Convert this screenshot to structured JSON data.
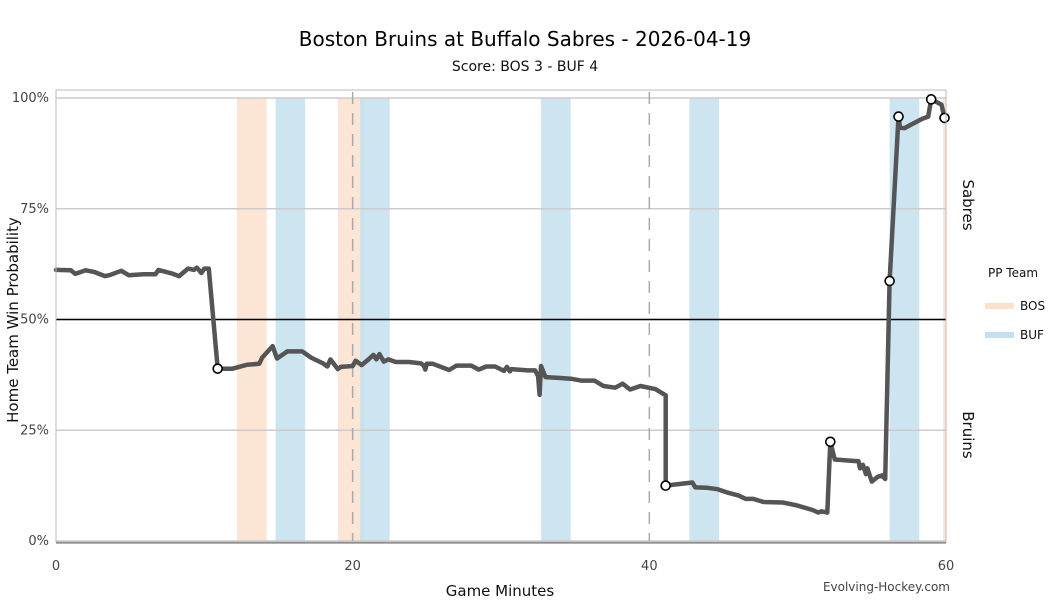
{
  "chart_data": {
    "type": "line",
    "title": "Boston Bruins at Buffalo Sabres - 2026-04-19",
    "subtitle": "Score: BOS 3 - BUF 4",
    "xlabel": "Game Minutes",
    "ylabel": "Home Team Win Probability",
    "xlim": [
      0,
      60
    ],
    "ylim": [
      0,
      1
    ],
    "x_ticks": [
      0,
      20,
      40,
      60
    ],
    "y_ticks": [
      {
        "value": 0,
        "label": "0%"
      },
      {
        "value": 0.25,
        "label": "25%"
      },
      {
        "value": 0.5,
        "label": "50%"
      },
      {
        "value": 0.75,
        "label": "75%"
      },
      {
        "value": 1,
        "label": "100%"
      }
    ],
    "period_breaks": [
      20,
      40
    ],
    "reference_line": 0.5,
    "side_labels": {
      "top": "Sabres",
      "bottom": "Bruins"
    },
    "legend": {
      "title": "PP Team",
      "position": "right",
      "entries": [
        {
          "name": "BOS",
          "color": "#fbe0cc"
        },
        {
          "name": "BUF",
          "color": "#c4e0ef"
        }
      ]
    },
    "power_plays": [
      {
        "team": "BOS",
        "start": 12.2,
        "end": 14.2
      },
      {
        "team": "BUF",
        "start": 14.8,
        "end": 16.8
      },
      {
        "team": "BOS",
        "start": 19.0,
        "end": 20.8
      },
      {
        "team": "BUF",
        "start": 20.5,
        "end": 22.5
      },
      {
        "team": "BUF",
        "start": 32.7,
        "end": 34.7
      },
      {
        "team": "BUF",
        "start": 42.7,
        "end": 44.7
      },
      {
        "team": "BUF",
        "start": 56.2,
        "end": 58.2
      },
      {
        "team": "BOS",
        "start": 59.8,
        "end": 60.0
      }
    ],
    "series": [
      {
        "color": "#555555",
        "points": [
          [
            0,
            0.612
          ],
          [
            1,
            0.611
          ],
          [
            1.3,
            0.603
          ],
          [
            2.0,
            0.611
          ],
          [
            2.6,
            0.607
          ],
          [
            3.3,
            0.598
          ],
          [
            3.6,
            0.6
          ],
          [
            4.4,
            0.61
          ],
          [
            4.9,
            0.6
          ],
          [
            5.9,
            0.602
          ],
          [
            6.7,
            0.602
          ],
          [
            6.9,
            0.612
          ],
          [
            7.8,
            0.604
          ],
          [
            8.3,
            0.598
          ],
          [
            8.9,
            0.615
          ],
          [
            9.3,
            0.612
          ],
          [
            9.5,
            0.617
          ],
          [
            9.8,
            0.605
          ],
          [
            10.0,
            0.615
          ],
          [
            10.3,
            0.615
          ],
          [
            10.9,
            0.389
          ],
          [
            11.9,
            0.389
          ],
          [
            12.9,
            0.398
          ],
          [
            13.7,
            0.4
          ],
          [
            13.9,
            0.414
          ],
          [
            14.6,
            0.44
          ],
          [
            14.9,
            0.412
          ],
          [
            15.6,
            0.428
          ],
          [
            16.6,
            0.428
          ],
          [
            17.2,
            0.414
          ],
          [
            18.0,
            0.401
          ],
          [
            18.3,
            0.394
          ],
          [
            18.5,
            0.41
          ],
          [
            19.0,
            0.388
          ],
          [
            19.2,
            0.393
          ],
          [
            20.0,
            0.395
          ],
          [
            20.2,
            0.407
          ],
          [
            20.6,
            0.397
          ],
          [
            21.0,
            0.408
          ],
          [
            21.4,
            0.42
          ],
          [
            21.6,
            0.41
          ],
          [
            21.8,
            0.422
          ],
          [
            22.1,
            0.405
          ],
          [
            22.4,
            0.41
          ],
          [
            22.9,
            0.404
          ],
          [
            23.8,
            0.404
          ],
          [
            24.6,
            0.401
          ],
          [
            24.8,
            0.396
          ],
          [
            24.9,
            0.387
          ],
          [
            25.0,
            0.4
          ],
          [
            25.4,
            0.4
          ],
          [
            26.5,
            0.386
          ],
          [
            27.0,
            0.396
          ],
          [
            28.0,
            0.396
          ],
          [
            28.5,
            0.387
          ],
          [
            29.0,
            0.394
          ],
          [
            29.6,
            0.394
          ],
          [
            30.2,
            0.384
          ],
          [
            30.4,
            0.393
          ],
          [
            30.6,
            0.383
          ],
          [
            30.7,
            0.388
          ],
          [
            31.8,
            0.385
          ],
          [
            32.3,
            0.385
          ],
          [
            32.5,
            0.372
          ],
          [
            32.6,
            0.33
          ],
          [
            32.7,
            0.395
          ],
          [
            33.0,
            0.37
          ],
          [
            34.0,
            0.368
          ],
          [
            34.8,
            0.366
          ],
          [
            35.4,
            0.362
          ],
          [
            36.3,
            0.362
          ],
          [
            36.9,
            0.35
          ],
          [
            37.7,
            0.346
          ],
          [
            38.2,
            0.355
          ],
          [
            38.7,
            0.342
          ],
          [
            39.4,
            0.35
          ],
          [
            40.4,
            0.343
          ],
          [
            41.1,
            0.329
          ],
          [
            41.1,
            0.125
          ],
          [
            42.1,
            0.129
          ],
          [
            42.9,
            0.132
          ],
          [
            43.1,
            0.121
          ],
          [
            43.9,
            0.12
          ],
          [
            44.6,
            0.117
          ],
          [
            45.2,
            0.11
          ],
          [
            46.0,
            0.103
          ],
          [
            46.5,
            0.095
          ],
          [
            47.0,
            0.095
          ],
          [
            47.7,
            0.088
          ],
          [
            49.0,
            0.087
          ],
          [
            50.0,
            0.08
          ],
          [
            51.0,
            0.07
          ],
          [
            51.4,
            0.064
          ],
          [
            51.6,
            0.067
          ],
          [
            52.0,
            0.064
          ],
          [
            52.2,
            0.224
          ],
          [
            52.5,
            0.184
          ],
          [
            53.6,
            0.181
          ],
          [
            54.1,
            0.18
          ],
          [
            54.2,
            0.164
          ],
          [
            54.4,
            0.172
          ],
          [
            54.6,
            0.151
          ],
          [
            54.7,
            0.164
          ],
          [
            55.0,
            0.134
          ],
          [
            55.4,
            0.145
          ],
          [
            55.7,
            0.148
          ],
          [
            55.9,
            0.14
          ],
          [
            56.2,
            0.587
          ],
          [
            56.8,
            0.958
          ],
          [
            56.9,
            0.933
          ],
          [
            57.2,
            0.932
          ],
          [
            57.6,
            0.939
          ],
          [
            58.4,
            0.953
          ],
          [
            58.8,
            0.958
          ],
          [
            59.0,
            0.997
          ],
          [
            59.7,
            0.985
          ],
          [
            59.9,
            0.955
          ]
        ],
        "goals": [
          [
            10.9,
            0.389
          ],
          [
            56.2,
            0.587
          ],
          [
            56.8,
            0.958
          ],
          [
            59.0,
            0.997
          ],
          [
            59.9,
            0.955
          ],
          [
            41.1,
            0.125
          ],
          [
            52.2,
            0.224
          ]
        ]
      }
    ]
  },
  "credit": "Evolving-Hockey.com"
}
